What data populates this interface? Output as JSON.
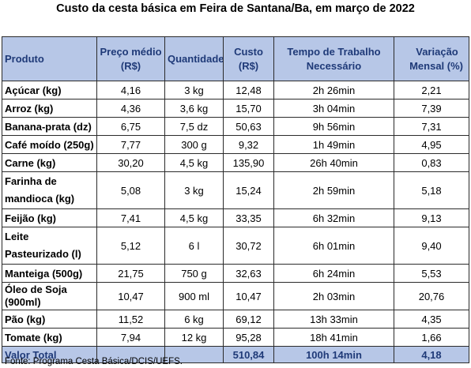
{
  "title": "Custo da cesta básica em Feira de Santana/Ba, em março de 2022",
  "columns": {
    "produto": "Produto",
    "preco": [
      "Preço médio",
      "(R$)"
    ],
    "quantidade": "Quantidade",
    "custo": [
      "Custo",
      "(R$)"
    ],
    "tempo": [
      "Tempo de Trabalho",
      "Necessário"
    ],
    "variacao": [
      "Variação",
      "Mensal (%)"
    ]
  },
  "rows": [
    {
      "produto": "Açúcar (kg)",
      "preco": "4,16",
      "quantidade": "3 kg",
      "custo": "12,48",
      "tempo": "2h 26min",
      "variacao": "2,21"
    },
    {
      "produto": "Arroz (kg)",
      "preco": "4,36",
      "quantidade": "3,6 kg",
      "custo": "15,70",
      "tempo": "3h 04min",
      "variacao": "7,39"
    },
    {
      "produto": "Banana-prata (dz)",
      "preco": "6,75",
      "quantidade": "7,5 dz",
      "custo": "50,63",
      "tempo": "9h 56min",
      "variacao": "7,31"
    },
    {
      "produto": "Café moído (250g)",
      "preco": "7,77",
      "quantidade": "300 g",
      "custo": "9,32",
      "tempo": "1h 49min",
      "variacao": "4,95"
    },
    {
      "produto": "Carne (kg)",
      "preco": "30,20",
      "quantidade": "4,5 kg",
      "custo": "135,90",
      "tempo": "26h 40min",
      "variacao": "0,83"
    },
    {
      "produto": "Farinha de mandioca (kg)",
      "preco": "5,08",
      "quantidade": "3 kg",
      "custo": "15,24",
      "tempo": "2h 59min",
      "variacao": "5,18"
    },
    {
      "produto": "Feijão (kg)",
      "preco": "7,41",
      "quantidade": "4,5 kg",
      "custo": "33,35",
      "tempo": "6h 32min",
      "variacao": "9,13"
    },
    {
      "produto": "Leite Pasteurizado (l)",
      "preco": "5,12",
      "quantidade": "6 l",
      "custo": "30,72",
      "tempo": "6h 01min",
      "variacao": "9,40"
    },
    {
      "produto": "Manteiga (500g)",
      "preco": "21,75",
      "quantidade": "750 g",
      "custo": "32,63",
      "tempo": "6h 24min",
      "variacao": "5,53"
    },
    {
      "produto": "Óleo de Soja (900ml)",
      "preco": "10,47",
      "quantidade": "900 ml",
      "custo": "10,47",
      "tempo": "2h 03min",
      "variacao": "20,76"
    },
    {
      "produto": "Pão (kg)",
      "preco": "11,52",
      "quantidade": "6 kg",
      "custo": "69,12",
      "tempo": "13h 33min",
      "variacao": "4,35"
    },
    {
      "produto": "Tomate (kg)",
      "preco": "7,94",
      "quantidade": "12 kg",
      "custo": "95,28",
      "tempo": "18h 41min",
      "variacao": "1,66"
    }
  ],
  "total": {
    "label": "Valor Total",
    "custo": "510,84",
    "tempo": "100h 14min",
    "variacao": "4,18"
  },
  "source": "Fonte: Programa Cesta Básica/DCIS/UEFS.",
  "colors": {
    "header_bg": "#b7c7e7",
    "header_text": "#1f3a78",
    "border": "#2b2b2b"
  }
}
